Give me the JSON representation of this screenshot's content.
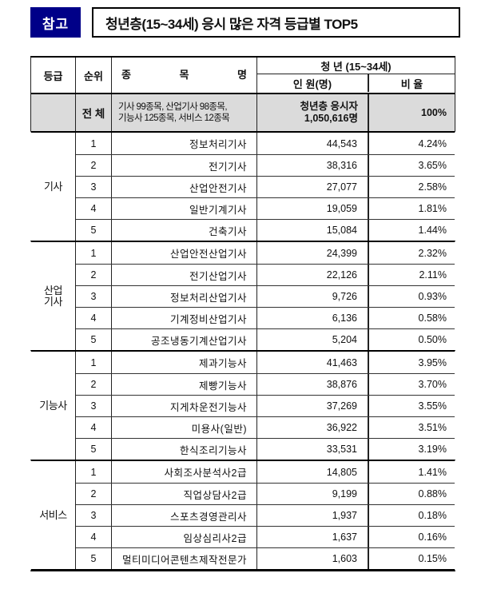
{
  "header": {
    "badge": "참고",
    "title": "청년층(15~34세) 응시 많은 자격 등급별 TOP5"
  },
  "colors": {
    "badge_bg": "#000088",
    "badge_text": "#ffffff",
    "total_row_bg": "#dbdbdb",
    "border": "#000000"
  },
  "table": {
    "columns": {
      "grade": "등급",
      "rank": "순위",
      "subject": "종 목 명",
      "youth_group": "청 년 (15~34세)",
      "count": "인 원(명)",
      "ratio": "비 율"
    },
    "total": {
      "rank": "전 체",
      "subject_line1": "기사 99종목, 산업기사 98종목,",
      "subject_line2": "기능사 125종목, 서비스 12종목",
      "count_line1": "청년층 응시자",
      "count_line2": "1,050,616명",
      "ratio": "100%"
    },
    "sections": [
      {
        "grade": "기사",
        "grade_lines": [
          "기사"
        ],
        "rows": [
          {
            "rank": "1",
            "subject": "정보처리기사",
            "count": "44,543",
            "ratio": "4.24%"
          },
          {
            "rank": "2",
            "subject": "전기기사",
            "count": "38,316",
            "ratio": "3.65%"
          },
          {
            "rank": "3",
            "subject": "산업안전기사",
            "count": "27,077",
            "ratio": "2.58%"
          },
          {
            "rank": "4",
            "subject": "일반기계기사",
            "count": "19,059",
            "ratio": "1.81%"
          },
          {
            "rank": "5",
            "subject": "건축기사",
            "count": "15,084",
            "ratio": "1.44%"
          }
        ]
      },
      {
        "grade": "산업기사",
        "grade_lines": [
          "산업",
          "기사"
        ],
        "rows": [
          {
            "rank": "1",
            "subject": "산업안전산업기사",
            "count": "24,399",
            "ratio": "2.32%"
          },
          {
            "rank": "2",
            "subject": "전기산업기사",
            "count": "22,126",
            "ratio": "2.11%"
          },
          {
            "rank": "3",
            "subject": "정보처리산업기사",
            "count": "9,726",
            "ratio": "0.93%"
          },
          {
            "rank": "4",
            "subject": "기계정비산업기사",
            "count": "6,136",
            "ratio": "0.58%"
          },
          {
            "rank": "5",
            "subject": "공조냉동기계산업기사",
            "count": "5,204",
            "ratio": "0.50%"
          }
        ]
      },
      {
        "grade": "기능사",
        "grade_lines": [
          "기능사"
        ],
        "rows": [
          {
            "rank": "1",
            "subject": "제과기능사",
            "count": "41,463",
            "ratio": "3.95%"
          },
          {
            "rank": "2",
            "subject": "제빵기능사",
            "count": "38,876",
            "ratio": "3.70%"
          },
          {
            "rank": "3",
            "subject": "지게차운전기능사",
            "count": "37,269",
            "ratio": "3.55%"
          },
          {
            "rank": "4",
            "subject": "미용사(일반)",
            "count": "36,922",
            "ratio": "3.51%"
          },
          {
            "rank": "5",
            "subject": "한식조리기능사",
            "count": "33,531",
            "ratio": "3.19%"
          }
        ]
      },
      {
        "grade": "서비스",
        "grade_lines": [
          "서비스"
        ],
        "rows": [
          {
            "rank": "1",
            "subject": "사회조사분석사2급",
            "count": "14,805",
            "ratio": "1.41%"
          },
          {
            "rank": "2",
            "subject": "직업상담사2급",
            "count": "9,199",
            "ratio": "0.88%"
          },
          {
            "rank": "3",
            "subject": "스포츠경영관리사",
            "count": "1,937",
            "ratio": "0.18%"
          },
          {
            "rank": "4",
            "subject": "임상심리사2급",
            "count": "1,637",
            "ratio": "0.16%"
          },
          {
            "rank": "5",
            "subject": "멀티미디어콘텐츠제작전문가",
            "count": "1,603",
            "ratio": "0.15%"
          }
        ]
      }
    ]
  }
}
